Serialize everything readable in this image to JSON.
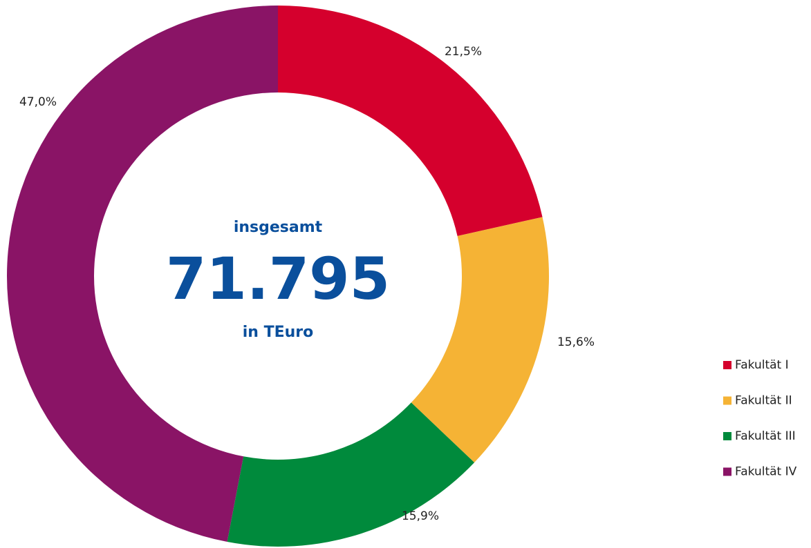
{
  "chart_data": {
    "type": "donut",
    "categories": [
      "Fakultät I",
      "Fakultät II",
      "Fakultät III",
      "Fakultät IV"
    ],
    "values": [
      21.5,
      15.6,
      15.9,
      47.0
    ],
    "value_labels": [
      "21,5%",
      "15,6%",
      "15,9%",
      "47,0%"
    ],
    "colors": [
      "#d5002d",
      "#f5b335",
      "#008a3c",
      "#8a1466"
    ],
    "center_text": [
      "insgesamt",
      "71.795",
      "in TEuro"
    ],
    "legend": "right"
  }
}
